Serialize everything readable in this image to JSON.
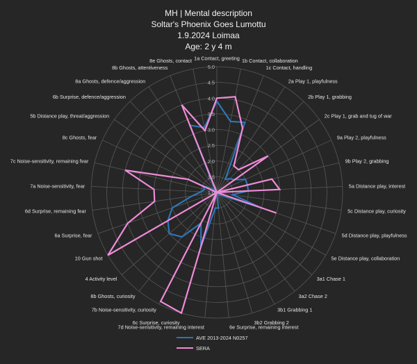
{
  "chart_data": {
    "type": "radar",
    "title_lines": [
      "MH | Mental description",
      "Soltar's Phoenix Goes Lumottu",
      "1.9.2024 Loimaa",
      "Age: 2 y 4 m"
    ],
    "categories": [
      "1a Contact, greeting",
      "1b Contact, collaboration",
      "1c Contact, handling",
      "2a Play 1, playfulness",
      "2b Play 1, grabbing",
      "2c Play 1, grab and tug of war",
      "9a Play 2, playfulness",
      "9b Play 2, grabbing",
      "5a Distance play, interest",
      "5c Distance play, curiosity",
      "5d Distance play, playfulness",
      "5e Distance play, collaboration",
      "3a1 Chase 1",
      "3a2 Chase 2",
      "3b1 Grabbing 1",
      "3b2 Grabbing 2",
      "6e Surprise, remaining interest",
      "7d Noise-sensitivity, remaining interest",
      "6c Surprise, curiosity",
      "7b Noise-sensitivity, curiosity",
      "8b Ghosts, curiosity",
      "4 Activity level",
      "10 Gun shot",
      "6a Surprise, fear",
      "6d Surprise, remaining fear",
      "7a Noise-sensitivity, fear",
      "7c Noise-sensitivity, remaining fear",
      "8c Ghosts, fear",
      "5b Distance play, threat/aggression",
      "6b Surprise, defence/aggression",
      "8a Ghosts, defence/aggression",
      "8b Ghosts, attentiveness",
      "8e Ghosts, contact"
    ],
    "r_range": [
      1,
      5
    ],
    "r_ticks": [
      "1.0",
      "1.5",
      "2.0",
      "2.5",
      "3.0",
      "3.5",
      "4.0",
      "4.5",
      "5.0"
    ],
    "series": [
      {
        "name": "AVE 2013-2024 N0257",
        "color": "#2e75b6",
        "values": [
          3.9,
          3.3,
          3.4,
          1.5,
          1.6,
          1.7,
          2.0,
          2.0,
          2.0,
          1.5,
          2.5,
          1.2,
          1.1,
          1.1,
          1.0,
          1.0,
          1.5,
          1.5,
          2.8,
          2.1,
          2.8,
          3.0,
          2.8,
          2.5,
          1.8,
          1.5,
          1.4,
          1.5,
          1.2,
          1.1,
          1.1,
          3.3,
          3.1
        ]
      },
      {
        "name": "SERA",
        "color": "#f08bd8",
        "values": [
          4.0,
          4.1,
          3.2,
          2.0,
          2.0,
          3.0,
          1.0,
          2.8,
          3.0,
          1.0,
          3.0,
          1.0,
          1.0,
          1.0,
          1.0,
          1.0,
          1.0,
          1.0,
          5.0,
          4.9,
          1.0,
          1.0,
          5.0,
          4.0,
          3.0,
          3.0,
          4.0,
          2.0,
          1.0,
          1.0,
          1.0,
          4.0,
          3.0
        ]
      }
    ],
    "legend_position": "bottom",
    "grid": true
  }
}
